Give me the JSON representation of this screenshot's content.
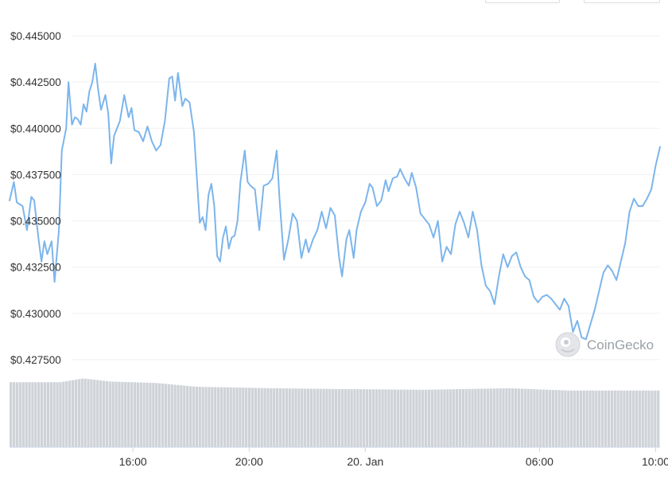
{
  "colors": {
    "price_line": "#7cb5ec",
    "volume_bar": "#cfd3d8",
    "grid": "#eef0f2",
    "axis_text": "#333333",
    "watermark": "#9aa0a6"
  },
  "watermark": {
    "text": "CoinGecko",
    "icon": "coingecko-logo-icon"
  },
  "chart_data": {
    "type": "line",
    "title": "",
    "xlabel": "",
    "ylabel": "",
    "legend": "none",
    "grid": true,
    "ylim": [
      0.4265,
      0.4455
    ],
    "x_unit": "hour",
    "xlim": [
      11.75,
      34.15
    ],
    "y_ticks": [
      {
        "value": 0.4275,
        "label": "$0.427500"
      },
      {
        "value": 0.43,
        "label": "$0.430000"
      },
      {
        "value": 0.4325,
        "label": "$0.432500"
      },
      {
        "value": 0.435,
        "label": "$0.435000"
      },
      {
        "value": 0.4375,
        "label": "$0.437500"
      },
      {
        "value": 0.44,
        "label": "$0.440000"
      },
      {
        "value": 0.4425,
        "label": "$0.442500"
      },
      {
        "value": 0.445,
        "label": "$0.445000"
      }
    ],
    "x_ticks": [
      {
        "value": 16,
        "label": "16:00"
      },
      {
        "value": 20,
        "label": "20:00"
      },
      {
        "value": 24,
        "label": "20. Jan"
      },
      {
        "value": 30,
        "label": "06:00"
      },
      {
        "value": 34,
        "label": "10:00"
      }
    ],
    "series": [
      {
        "values": [
          [
            11.75,
            0.4361
          ],
          [
            11.9,
            0.4371
          ],
          [
            12.0,
            0.436
          ],
          [
            12.2,
            0.4358
          ],
          [
            12.35,
            0.4345
          ],
          [
            12.5,
            0.4363
          ],
          [
            12.6,
            0.4361
          ],
          [
            12.75,
            0.434
          ],
          [
            12.85,
            0.4328
          ],
          [
            12.95,
            0.4339
          ],
          [
            13.05,
            0.4332
          ],
          [
            13.2,
            0.4339
          ],
          [
            13.3,
            0.4317
          ],
          [
            13.45,
            0.4345
          ],
          [
            13.55,
            0.4388
          ],
          [
            13.7,
            0.44
          ],
          [
            13.78,
            0.4425
          ],
          [
            13.9,
            0.4402
          ],
          [
            14.0,
            0.4406
          ],
          [
            14.1,
            0.4405
          ],
          [
            14.2,
            0.4402
          ],
          [
            14.3,
            0.4413
          ],
          [
            14.4,
            0.4409
          ],
          [
            14.5,
            0.442
          ],
          [
            14.6,
            0.4425
          ],
          [
            14.7,
            0.4435
          ],
          [
            14.8,
            0.4421
          ],
          [
            14.9,
            0.441
          ],
          [
            15.05,
            0.4418
          ],
          [
            15.15,
            0.4408
          ],
          [
            15.25,
            0.4381
          ],
          [
            15.35,
            0.4396
          ],
          [
            15.55,
            0.4404
          ],
          [
            15.7,
            0.4418
          ],
          [
            15.85,
            0.4406
          ],
          [
            15.95,
            0.4411
          ],
          [
            16.05,
            0.4399
          ],
          [
            16.2,
            0.4398
          ],
          [
            16.35,
            0.4393
          ],
          [
            16.5,
            0.4401
          ],
          [
            16.65,
            0.4393
          ],
          [
            16.8,
            0.4388
          ],
          [
            16.95,
            0.4391
          ],
          [
            17.1,
            0.4404
          ],
          [
            17.25,
            0.4427
          ],
          [
            17.35,
            0.4428
          ],
          [
            17.45,
            0.4415
          ],
          [
            17.55,
            0.443
          ],
          [
            17.7,
            0.4412
          ],
          [
            17.8,
            0.4416
          ],
          [
            17.95,
            0.4414
          ],
          [
            18.1,
            0.4398
          ],
          [
            18.3,
            0.4349
          ],
          [
            18.4,
            0.4352
          ],
          [
            18.5,
            0.4345
          ],
          [
            18.6,
            0.4364
          ],
          [
            18.7,
            0.437
          ],
          [
            18.8,
            0.4358
          ],
          [
            18.9,
            0.4331
          ],
          [
            19.0,
            0.4328
          ],
          [
            19.1,
            0.4341
          ],
          [
            19.2,
            0.4347
          ],
          [
            19.3,
            0.4335
          ],
          [
            19.4,
            0.4341
          ],
          [
            19.5,
            0.4342
          ],
          [
            19.6,
            0.435
          ],
          [
            19.7,
            0.4371
          ],
          [
            19.85,
            0.4388
          ],
          [
            19.95,
            0.4371
          ],
          [
            20.05,
            0.4369
          ],
          [
            20.2,
            0.4367
          ],
          [
            20.35,
            0.4345
          ],
          [
            20.5,
            0.4369
          ],
          [
            20.65,
            0.437
          ],
          [
            20.8,
            0.4373
          ],
          [
            20.95,
            0.4388
          ],
          [
            21.05,
            0.4361
          ],
          [
            21.2,
            0.4329
          ],
          [
            21.35,
            0.434
          ],
          [
            21.5,
            0.4354
          ],
          [
            21.65,
            0.435
          ],
          [
            21.8,
            0.433
          ],
          [
            21.95,
            0.434
          ],
          [
            22.05,
            0.4333
          ],
          [
            22.2,
            0.434
          ],
          [
            22.35,
            0.4345
          ],
          [
            22.5,
            0.4355
          ],
          [
            22.65,
            0.4346
          ],
          [
            22.8,
            0.4357
          ],
          [
            22.95,
            0.4353
          ],
          [
            23.1,
            0.433
          ],
          [
            23.2,
            0.432
          ],
          [
            23.35,
            0.434
          ],
          [
            23.45,
            0.4345
          ],
          [
            23.6,
            0.433
          ],
          [
            23.7,
            0.4345
          ],
          [
            23.85,
            0.4355
          ],
          [
            24.0,
            0.436
          ],
          [
            24.15,
            0.437
          ],
          [
            24.25,
            0.4368
          ],
          [
            24.4,
            0.4358
          ],
          [
            24.55,
            0.4361
          ],
          [
            24.7,
            0.4372
          ],
          [
            24.8,
            0.4366
          ],
          [
            24.95,
            0.4373
          ],
          [
            25.1,
            0.4374
          ],
          [
            25.2,
            0.4378
          ],
          [
            25.35,
            0.4373
          ],
          [
            25.5,
            0.4369
          ],
          [
            25.6,
            0.4376
          ],
          [
            25.75,
            0.4368
          ],
          [
            25.9,
            0.4354
          ],
          [
            26.05,
            0.4351
          ],
          [
            26.2,
            0.4348
          ],
          [
            26.35,
            0.4341
          ],
          [
            26.5,
            0.435
          ],
          [
            26.65,
            0.4328
          ],
          [
            26.8,
            0.4336
          ],
          [
            26.95,
            0.4332
          ],
          [
            27.1,
            0.4348
          ],
          [
            27.25,
            0.4355
          ],
          [
            27.4,
            0.4349
          ],
          [
            27.55,
            0.4341
          ],
          [
            27.7,
            0.4355
          ],
          [
            27.85,
            0.4345
          ],
          [
            28.0,
            0.4326
          ],
          [
            28.15,
            0.4315
          ],
          [
            28.3,
            0.4312
          ],
          [
            28.45,
            0.4305
          ],
          [
            28.6,
            0.432
          ],
          [
            28.75,
            0.4332
          ],
          [
            28.9,
            0.4325
          ],
          [
            29.05,
            0.4331
          ],
          [
            29.2,
            0.4333
          ],
          [
            29.35,
            0.4325
          ],
          [
            29.5,
            0.432
          ],
          [
            29.65,
            0.4318
          ],
          [
            29.8,
            0.4309
          ],
          [
            29.95,
            0.4306
          ],
          [
            30.1,
            0.4309
          ],
          [
            30.25,
            0.431
          ],
          [
            30.4,
            0.4308
          ],
          [
            30.55,
            0.4305
          ],
          [
            30.7,
            0.4302
          ],
          [
            30.85,
            0.4308
          ],
          [
            31.0,
            0.4304
          ],
          [
            31.15,
            0.429
          ],
          [
            31.3,
            0.4296
          ],
          [
            31.45,
            0.4287
          ],
          [
            31.6,
            0.4286
          ],
          [
            31.75,
            0.4294
          ],
          [
            31.9,
            0.4302
          ],
          [
            32.05,
            0.4312
          ],
          [
            32.2,
            0.4322
          ],
          [
            32.35,
            0.4326
          ],
          [
            32.5,
            0.4323
          ],
          [
            32.65,
            0.4318
          ],
          [
            32.8,
            0.4328
          ],
          [
            32.95,
            0.4338
          ],
          [
            33.1,
            0.4355
          ],
          [
            33.25,
            0.4362
          ],
          [
            33.4,
            0.4358
          ],
          [
            33.55,
            0.4358
          ],
          [
            33.7,
            0.4362
          ],
          [
            33.85,
            0.4367
          ],
          [
            34.0,
            0.438
          ],
          [
            34.15,
            0.439
          ]
        ]
      }
    ],
    "volume": {
      "bar_count": 210,
      "profile_hours": [
        11.75,
        13.5,
        14.3,
        15.2,
        16.8,
        18.2,
        20.8,
        23.0,
        26.0,
        29.0,
        31.0,
        34.15
      ],
      "profile_levels": [
        0.86,
        0.86,
        0.91,
        0.87,
        0.85,
        0.8,
        0.78,
        0.77,
        0.76,
        0.78,
        0.75,
        0.75
      ]
    }
  }
}
